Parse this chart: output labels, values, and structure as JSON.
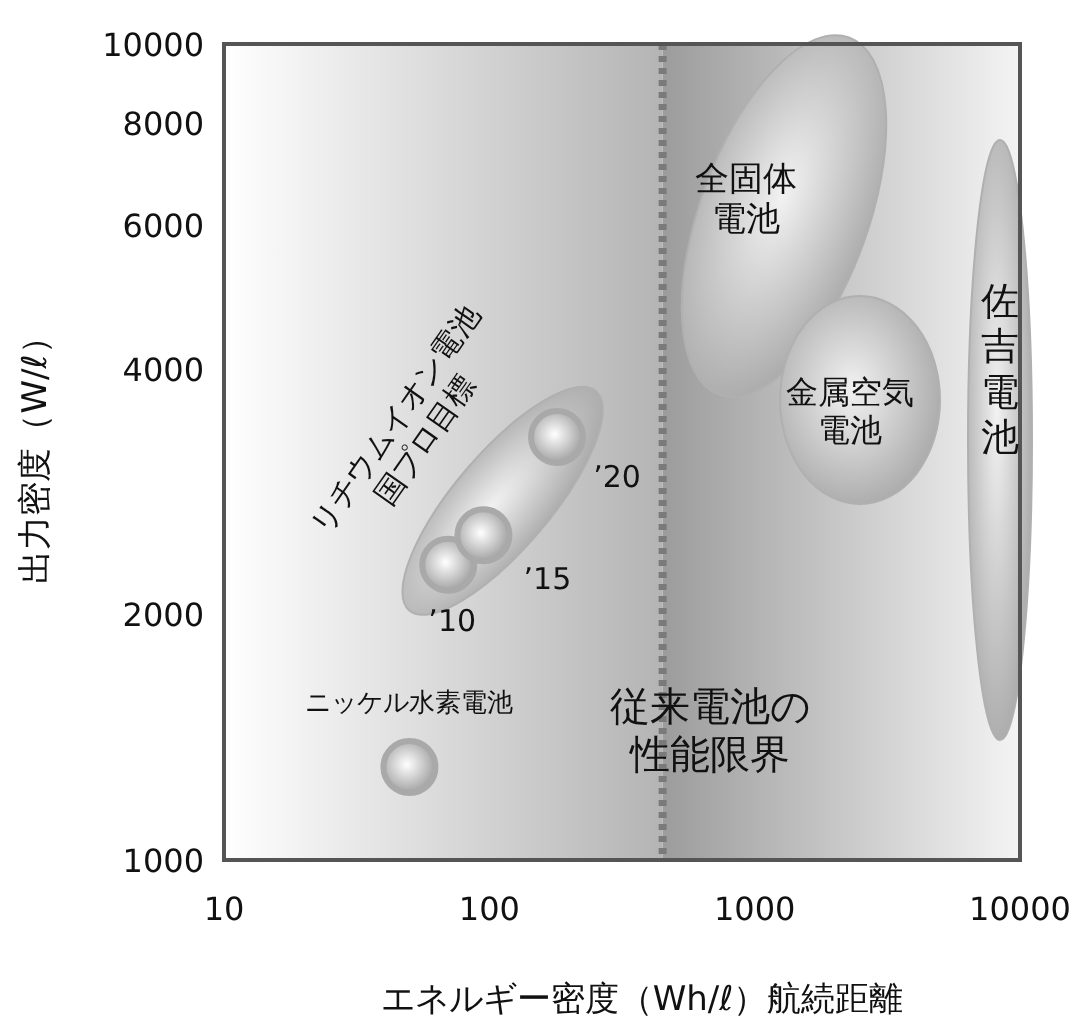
{
  "chart_data": {
    "type": "scatter",
    "xlabel": "エネルギー密度（Wh/ℓ）航続距離",
    "ylabel": "出力密度（W/ℓ）",
    "log": "xy",
    "xlim": [
      10,
      10000
    ],
    "ylim": [
      1000,
      10000
    ],
    "xticks": [
      10,
      100,
      1000,
      10000
    ],
    "yticks": [
      1000,
      2000,
      4000,
      6000,
      8000,
      10000
    ],
    "marker": "circle",
    "series": [
      {
        "color": "#a9a9a9",
        "x": [
          50,
          70,
          95,
          180
        ],
        "values": [
          1300,
          2300,
          2500,
          3300
        ]
      }
    ],
    "ref_lines": [
      {
        "axis": "x",
        "value": 450,
        "color": "#7a7a7a",
        "line_style": "dotted"
      }
    ],
    "annotations": [
      "全固体電池",
      "金属空気電池",
      "佐吉電池",
      "リチウムイオン電池国プロ目標",
      "従来電池の性能限界",
      {
        "text": "ニッケル水素電池",
        "x": 50,
        "y": 1300
      },
      {
        "text": "’10",
        "x": 70,
        "y": 2300
      },
      {
        "text": "’15",
        "x": 95,
        "y": 2500
      },
      {
        "text": "’20",
        "x": 180,
        "y": 3300
      }
    ]
  }
}
